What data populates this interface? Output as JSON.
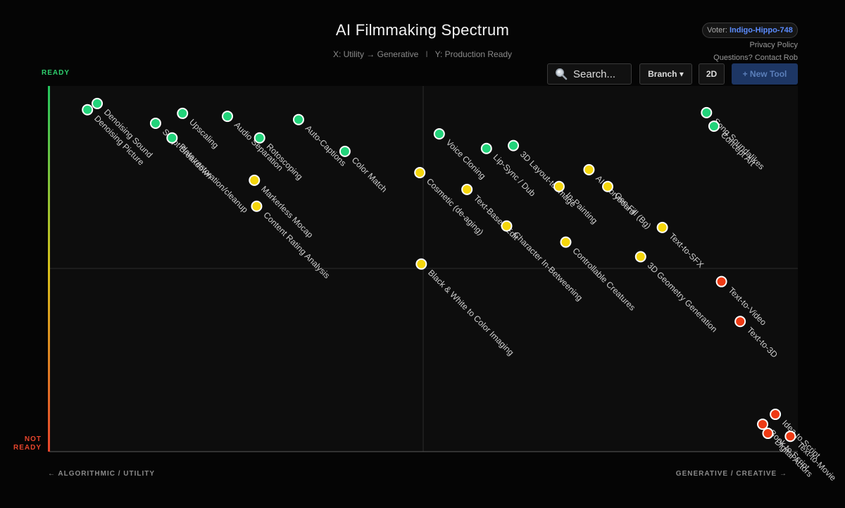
{
  "header": {
    "title": "AI Filmmaking Spectrum",
    "subtitle_x": "X: Utility → Generative",
    "subtitle_sep": "I",
    "subtitle_y": "Y: Production Ready"
  },
  "voter": {
    "prefix": "Voter:",
    "name": "Indigo-Hippo-748"
  },
  "links": {
    "privacy": "Privacy Policy",
    "contact": "Questions? Contact Rob"
  },
  "toolbar": {
    "search_placeholder": "Search...",
    "branch_label": "Branch ▾",
    "mode_label": "2D",
    "new_tool_label": "+ New Tool"
  },
  "axes": {
    "ready": "READY",
    "not_ready_1": "NOT",
    "not_ready_2": "READY",
    "x_left": "← ALGORITHMIC / UTILITY",
    "x_right": "GENERATIVE / CREATIVE →"
  },
  "colors": {
    "ready": "#22d37a",
    "mid": "#f5d60c",
    "not_ready": "#ee3a14",
    "background": "#050505"
  },
  "chart_data": {
    "type": "scatter",
    "xlim": [
      0,
      100
    ],
    "ylim": [
      0,
      100
    ],
    "quadrant_lines": true,
    "points": [
      {
        "name": "Denoising Sound",
        "x": 6.4,
        "y": 95.2,
        "status": "ready"
      },
      {
        "name": "Denoising Picture",
        "x": 5.1,
        "y": 93.5,
        "status": "ready"
      },
      {
        "name": "Script Breakdown",
        "x": 14.2,
        "y": 89.8,
        "status": "ready"
      },
      {
        "name": "Upscaling",
        "x": 17.8,
        "y": 92.5,
        "status": "ready"
      },
      {
        "name": "Plate restoration/cleanup",
        "x": 16.4,
        "y": 85.8,
        "status": "ready"
      },
      {
        "name": "Audio Separation",
        "x": 23.8,
        "y": 91.7,
        "status": "ready"
      },
      {
        "name": "Rotoscoping",
        "x": 28.1,
        "y": 85.8,
        "status": "ready"
      },
      {
        "name": "Auto-Captions",
        "x": 33.3,
        "y": 90.8,
        "status": "ready"
      },
      {
        "name": "Color Match",
        "x": 39.5,
        "y": 82.1,
        "status": "ready"
      },
      {
        "name": "Markerless Mocap",
        "x": 27.4,
        "y": 74.2,
        "status": "mid"
      },
      {
        "name": "Content Rating Analysis",
        "x": 27.7,
        "y": 67.1,
        "status": "mid"
      },
      {
        "name": "Voice Cloning",
        "x": 52.1,
        "y": 86.9,
        "status": "ready"
      },
      {
        "name": "Cosmetic (de-aging)",
        "x": 49.5,
        "y": 76.3,
        "status": "mid"
      },
      {
        "name": "Lip-Sync / Dub",
        "x": 58.4,
        "y": 82.9,
        "status": "ready"
      },
      {
        "name": "3D Layout-to-Image",
        "x": 62.0,
        "y": 83.7,
        "status": "ready"
      },
      {
        "name": "Text-Based Edit",
        "x": 55.8,
        "y": 71.7,
        "status": "mid"
      },
      {
        "name": "Character In-Betweening",
        "x": 61.1,
        "y": 61.7,
        "status": "mid"
      },
      {
        "name": "In-Painting",
        "x": 68.1,
        "y": 72.5,
        "status": "mid"
      },
      {
        "name": "AI Storyboard",
        "x": 72.1,
        "y": 77.1,
        "status": "mid"
      },
      {
        "name": "Gen Fill (Bg)",
        "x": 74.6,
        "y": 72.5,
        "status": "mid"
      },
      {
        "name": "Controllable Creatures",
        "x": 69.0,
        "y": 57.3,
        "status": "mid"
      },
      {
        "name": "3D Geometry Generation",
        "x": 79.0,
        "y": 53.3,
        "status": "mid"
      },
      {
        "name": "Text-to-SFX",
        "x": 81.9,
        "y": 61.3,
        "status": "mid"
      },
      {
        "name": "Black & White to Color Imaging",
        "x": 49.7,
        "y": 51.3,
        "status": "mid"
      },
      {
        "name": "Song Soundalikes",
        "x": 87.8,
        "y": 92.7,
        "status": "ready"
      },
      {
        "name": "Concept Art",
        "x": 88.8,
        "y": 89.0,
        "status": "ready"
      },
      {
        "name": "Text-to-Video",
        "x": 89.8,
        "y": 46.5,
        "status": "not_ready"
      },
      {
        "name": "Text-to-3D",
        "x": 92.3,
        "y": 35.6,
        "status": "not_ready"
      },
      {
        "name": "Idea to Script",
        "x": 97.0,
        "y": 10.2,
        "status": "not_ready"
      },
      {
        "name": "Book to Script",
        "x": 95.3,
        "y": 7.5,
        "status": "not_ready"
      },
      {
        "name": "Digital Actors",
        "x": 96.0,
        "y": 5.0,
        "status": "not_ready"
      },
      {
        "name": "Text-to-Movie",
        "x": 99.0,
        "y": 4.2,
        "status": "not_ready"
      }
    ]
  }
}
